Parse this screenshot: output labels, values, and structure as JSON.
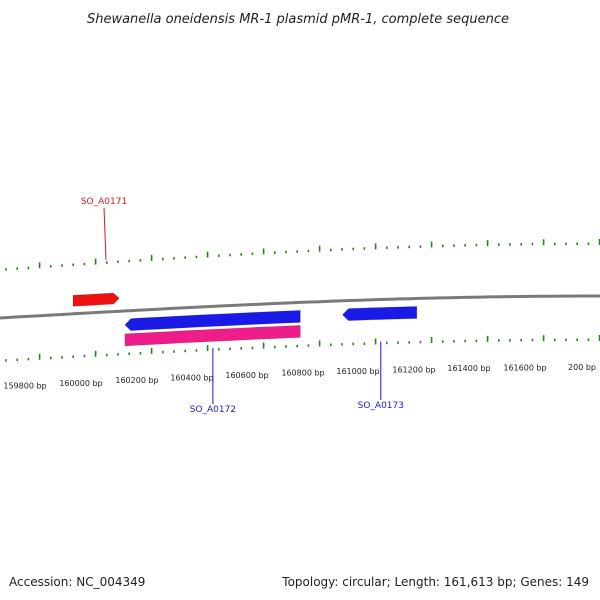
{
  "title": "Shewanella oneidensis MR-1 plasmid pMR-1, complete sequence",
  "footer": {
    "accession": "Accession: NC_004349",
    "summary": "Topology: circular; Length: 161,613 bp; Genes: 149"
  },
  "colors": {
    "backbone": "#7a7a7a",
    "tick": "#2e7d1f",
    "forward_cds": "#ee1111",
    "reverse_cds": "#1a1ae6",
    "reverse_rna": "#ee1d8a",
    "label_forward": "#d81b1b",
    "label_reverse": "#1a1acc"
  },
  "ruler_labels": [
    "159800 bp",
    "160000 bp",
    "160200 bp",
    "160400 bp",
    "160600 bp",
    "160800 bp",
    "161000 bp",
    "161200 bp",
    "161400 bp",
    "161600 bp",
    "200 bp"
  ],
  "features": [
    {
      "type": "CDS",
      "strand": "+",
      "start": 160000,
      "end": 160165,
      "label": "SO_A0171"
    },
    {
      "type": "CDS",
      "strand": "-",
      "start": 160185,
      "end": 160810,
      "label": "SO_A0172"
    },
    {
      "type": "RNA",
      "strand": "-",
      "start": 160185,
      "end": 160810,
      "label": ""
    },
    {
      "type": "CDS",
      "strand": "-",
      "start": 160960,
      "end": 161225,
      "label": "SO_A0173"
    }
  ]
}
